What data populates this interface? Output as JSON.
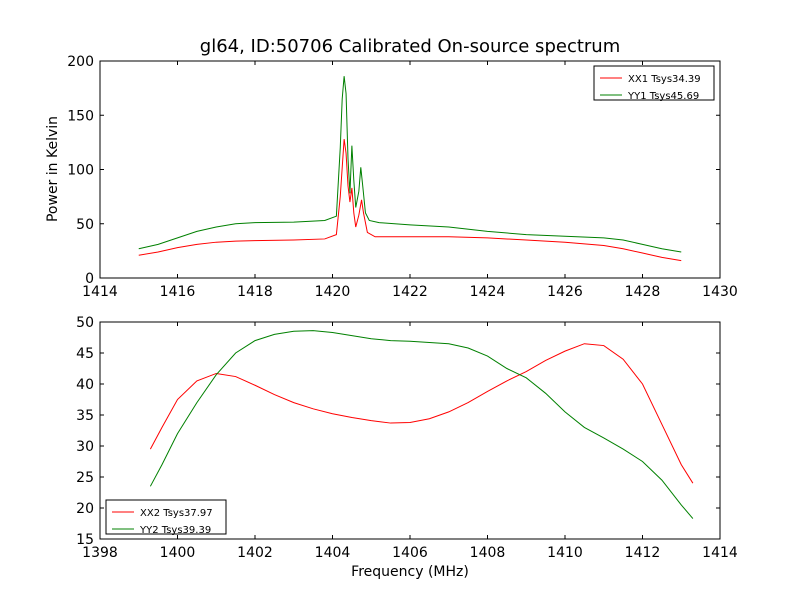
{
  "chart_data": [
    {
      "type": "line",
      "title": "gl64, ID:50706 Calibrated On-source spectrum",
      "xlabel": "",
      "ylabel": "Power in Kelvin",
      "xlim": [
        1414,
        1430
      ],
      "ylim": [
        0,
        200
      ],
      "xticks": [
        1414,
        1416,
        1418,
        1420,
        1422,
        1424,
        1426,
        1428,
        1430
      ],
      "yticks": [
        0,
        50,
        100,
        150,
        200
      ],
      "legend_position": "top-right",
      "grid": false,
      "series": [
        {
          "name": "XX1 Tsys34.39",
          "color": "#ff0000",
          "points": [
            [
              1415,
              21
            ],
            [
              1415.5,
              24
            ],
            [
              1416,
              28
            ],
            [
              1416.5,
              31
            ],
            [
              1417,
              33
            ],
            [
              1417.5,
              34
            ],
            [
              1418,
              34.5
            ],
            [
              1419,
              35
            ],
            [
              1419.8,
              36
            ],
            [
              1420.1,
              40
            ],
            [
              1420.2,
              75
            ],
            [
              1420.3,
              128
            ],
            [
              1420.35,
              115
            ],
            [
              1420.4,
              85
            ],
            [
              1420.45,
              70
            ],
            [
              1420.5,
              83
            ],
            [
              1420.55,
              60
            ],
            [
              1420.6,
              47
            ],
            [
              1420.68,
              58
            ],
            [
              1420.75,
              72
            ],
            [
              1420.8,
              60
            ],
            [
              1420.9,
              42
            ],
            [
              1421.1,
              38
            ],
            [
              1422,
              38
            ],
            [
              1423,
              38
            ],
            [
              1424,
              37
            ],
            [
              1425,
              35
            ],
            [
              1426,
              33
            ],
            [
              1427,
              30
            ],
            [
              1427.5,
              27
            ],
            [
              1428,
              23
            ],
            [
              1428.5,
              19
            ],
            [
              1429,
              16
            ]
          ]
        },
        {
          "name": "YY1 Tsys45.69",
          "color": "#008000",
          "points": [
            [
              1415,
              27
            ],
            [
              1415.5,
              31
            ],
            [
              1416,
              37
            ],
            [
              1416.5,
              43
            ],
            [
              1417,
              47
            ],
            [
              1417.5,
              50
            ],
            [
              1418,
              51
            ],
            [
              1419,
              51.5
            ],
            [
              1419.8,
              53
            ],
            [
              1420.1,
              57
            ],
            [
              1420.2,
              120
            ],
            [
              1420.25,
              165
            ],
            [
              1420.3,
              186
            ],
            [
              1420.35,
              170
            ],
            [
              1420.4,
              110
            ],
            [
              1420.45,
              78
            ],
            [
              1420.5,
              122
            ],
            [
              1420.55,
              90
            ],
            [
              1420.6,
              65
            ],
            [
              1420.68,
              80
            ],
            [
              1420.73,
              102
            ],
            [
              1420.78,
              85
            ],
            [
              1420.85,
              60
            ],
            [
              1420.95,
              53
            ],
            [
              1421.2,
              51
            ],
            [
              1422,
              49
            ],
            [
              1423,
              47
            ],
            [
              1424,
              43
            ],
            [
              1425,
              40
            ],
            [
              1426,
              38.5
            ],
            [
              1427,
              37
            ],
            [
              1427.5,
              35
            ],
            [
              1428,
              31
            ],
            [
              1428.5,
              27
            ],
            [
              1429,
              24
            ]
          ]
        }
      ]
    },
    {
      "type": "line",
      "title": "",
      "xlabel": "Frequency (MHz)",
      "ylabel": "",
      "xlim": [
        1398,
        1414
      ],
      "ylim": [
        15,
        50
      ],
      "xticks": [
        1398,
        1400,
        1402,
        1404,
        1406,
        1408,
        1410,
        1412,
        1414
      ],
      "yticks": [
        15,
        20,
        25,
        30,
        35,
        40,
        45,
        50
      ],
      "legend_position": "bottom-left",
      "grid": false,
      "series": [
        {
          "name": "XX2 Tsys37.97",
          "color": "#ff0000",
          "points": [
            [
              1399.3,
              29.5
            ],
            [
              1399.6,
              33
            ],
            [
              1400,
              37.5
            ],
            [
              1400.5,
              40.5
            ],
            [
              1401,
              41.7
            ],
            [
              1401.5,
              41.2
            ],
            [
              1402,
              39.8
            ],
            [
              1402.5,
              38.3
            ],
            [
              1403,
              37
            ],
            [
              1403.5,
              36
            ],
            [
              1404,
              35.2
            ],
            [
              1404.5,
              34.6
            ],
            [
              1405,
              34.1
            ],
            [
              1405.5,
              33.7
            ],
            [
              1406,
              33.8
            ],
            [
              1406.5,
              34.4
            ],
            [
              1407,
              35.5
            ],
            [
              1407.5,
              37
            ],
            [
              1408,
              38.8
            ],
            [
              1408.5,
              40.5
            ],
            [
              1409,
              42
            ],
            [
              1409.5,
              43.8
            ],
            [
              1410,
              45.3
            ],
            [
              1410.5,
              46.5
            ],
            [
              1411,
              46.2
            ],
            [
              1411.5,
              44
            ],
            [
              1412,
              40
            ],
            [
              1412.5,
              33.5
            ],
            [
              1413,
              27
            ],
            [
              1413.3,
              24
            ]
          ]
        },
        {
          "name": "YY2 Tsys39.39",
          "color": "#008000",
          "points": [
            [
              1399.3,
              23.5
            ],
            [
              1399.6,
              27
            ],
            [
              1400,
              32
            ],
            [
              1400.5,
              37
            ],
            [
              1401,
              41.5
            ],
            [
              1401.5,
              45
            ],
            [
              1402,
              47
            ],
            [
              1402.5,
              48
            ],
            [
              1403,
              48.5
            ],
            [
              1403.5,
              48.6
            ],
            [
              1404,
              48.3
            ],
            [
              1404.5,
              47.8
            ],
            [
              1405,
              47.3
            ],
            [
              1405.5,
              47
            ],
            [
              1406,
              46.9
            ],
            [
              1406.5,
              46.7
            ],
            [
              1407,
              46.5
            ],
            [
              1407.5,
              45.8
            ],
            [
              1408,
              44.5
            ],
            [
              1408.5,
              42.5
            ],
            [
              1409,
              41
            ],
            [
              1409.5,
              38.5
            ],
            [
              1410,
              35.5
            ],
            [
              1410.5,
              33
            ],
            [
              1411,
              31.3
            ],
            [
              1411.5,
              29.5
            ],
            [
              1412,
              27.5
            ],
            [
              1412.5,
              24.5
            ],
            [
              1413,
              20.5
            ],
            [
              1413.3,
              18.3
            ]
          ]
        }
      ]
    }
  ]
}
